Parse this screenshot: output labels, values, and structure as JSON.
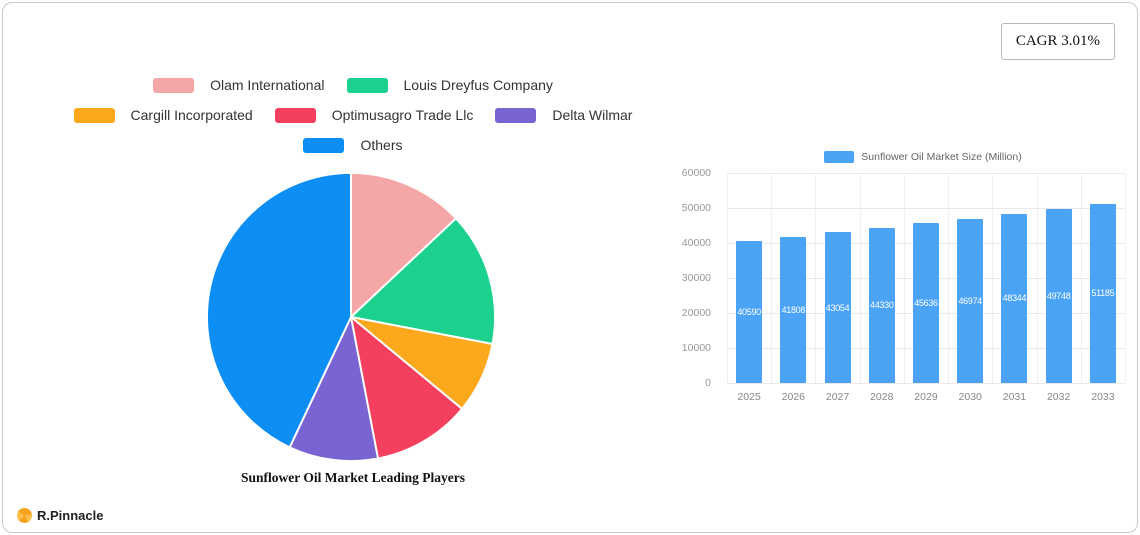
{
  "page": {
    "cagr_label": "CAGR 3.01%",
    "brand": "R.Pinnacle"
  },
  "chart_data": [
    {
      "type": "pie",
      "title": "Sunflower Oil Market Leading Players",
      "labels": [
        "Olam International",
        "Louis Dreyfus Company",
        "Cargill Incorporated",
        "Optimusagro Trade Llc",
        "Delta Wilmar",
        "Others"
      ],
      "values": [
        13,
        15,
        8,
        11,
        10,
        43
      ],
      "colors": [
        "#f5a6a6",
        "#1cd08d",
        "#fba81d",
        "#f43f5e",
        "#7a64d4",
        "#0d8ef5"
      ],
      "legend_position": "top",
      "start_angle_deg": -90,
      "direction": "clockwise"
    },
    {
      "type": "bar",
      "legend": "Sunflower Oil Market Size (Million)",
      "categories": [
        "2025",
        "2026",
        "2027",
        "2028",
        "2029",
        "2030",
        "2031",
        "2032",
        "2033"
      ],
      "values": [
        40590,
        41808,
        43054,
        44330,
        45636,
        46974,
        48344,
        49748,
        51185
      ],
      "yticks": [
        0,
        10000,
        20000,
        30000,
        40000,
        50000,
        60000
      ],
      "ylim": [
        0,
        60000
      ],
      "color": "#4aa3f5",
      "grid": "on",
      "value_labels": "inside-white"
    }
  ]
}
